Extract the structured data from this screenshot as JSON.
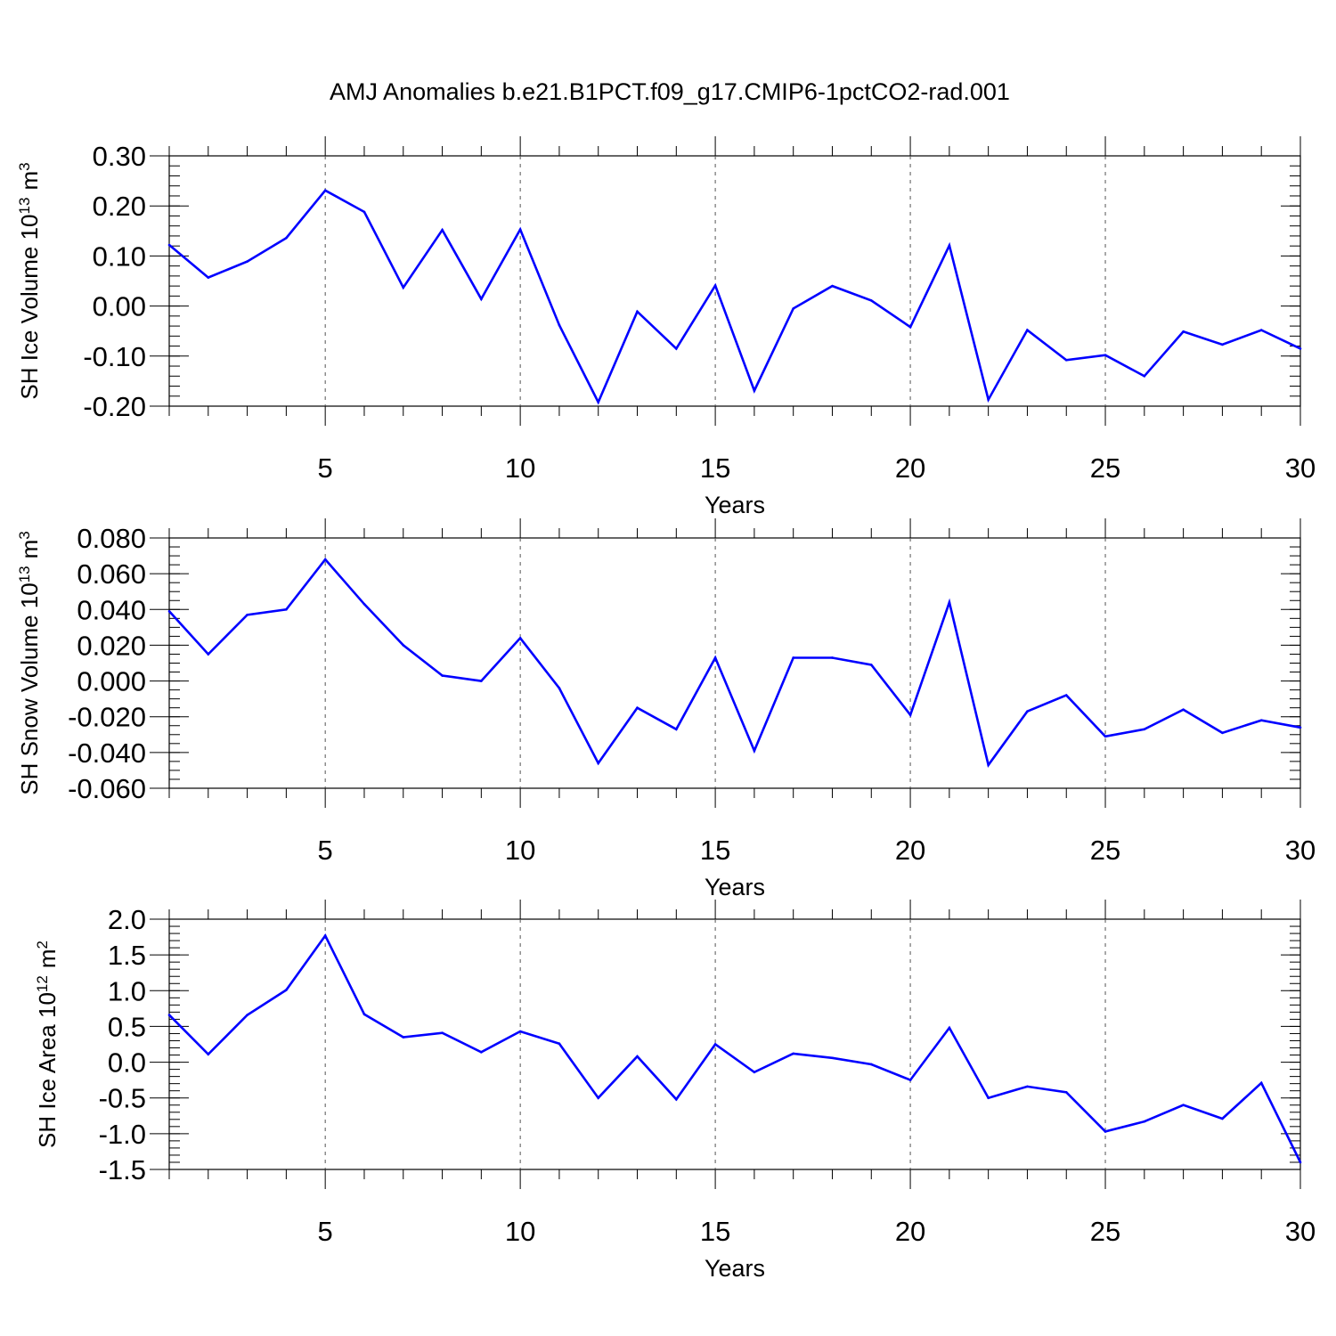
{
  "title": "AMJ Anomalies b.e21.B1PCT.f09_g17.CMIP6-1pctCO2-rad.001",
  "line_color": "#0000ff",
  "chart_data": [
    {
      "type": "line",
      "ylabel_main": "SH Ice Volume 10",
      "ylabel_sup": "13",
      "ylabel_unit": "m",
      "ylabel_unit_sup": "3",
      "xlabel": "Years",
      "ylim": [
        -0.2,
        0.3
      ],
      "xlim": [
        1,
        30
      ],
      "yticks": [
        "0.30",
        "0.20",
        "0.10",
        "0.00",
        "-0.10",
        "-0.20"
      ],
      "ytick_values": [
        0.3,
        0.2,
        0.1,
        0.0,
        -0.1,
        -0.2
      ],
      "yminor_step": 0.02,
      "xticks": [
        "5",
        "10",
        "15",
        "20",
        "25",
        "30"
      ],
      "xtick_values": [
        5,
        10,
        15,
        20,
        25,
        30
      ],
      "grid_x": "dashed-vertical",
      "x": [
        1,
        2,
        3,
        4,
        5,
        6,
        7,
        8,
        9,
        10,
        11,
        12,
        13,
        14,
        15,
        16,
        17,
        18,
        19,
        20,
        21,
        22,
        23,
        24,
        25,
        26,
        27,
        28,
        29,
        30
      ],
      "values": [
        0.122,
        0.057,
        0.089,
        0.136,
        0.231,
        0.188,
        0.037,
        0.152,
        0.014,
        0.153,
        -0.038,
        -0.192,
        -0.011,
        -0.085,
        0.041,
        -0.169,
        -0.005,
        0.04,
        0.011,
        -0.042,
        0.121,
        -0.187,
        -0.048,
        -0.108,
        -0.098,
        -0.14,
        -0.051,
        -0.077,
        -0.048,
        -0.085
      ]
    },
    {
      "type": "line",
      "ylabel_main": "SH Snow Volume 10",
      "ylabel_sup": "13",
      "ylabel_unit": "m",
      "ylabel_unit_sup": "3",
      "xlabel": "Years",
      "ylim": [
        -0.06,
        0.08
      ],
      "xlim": [
        1,
        30
      ],
      "yticks": [
        "0.080",
        "0.060",
        "0.040",
        "0.020",
        "0.000",
        "-0.020",
        "-0.040",
        "-0.060"
      ],
      "ytick_values": [
        0.08,
        0.06,
        0.04,
        0.02,
        0.0,
        -0.02,
        -0.04,
        -0.06
      ],
      "yminor_step": 0.005,
      "xticks": [
        "5",
        "10",
        "15",
        "20",
        "25",
        "30"
      ],
      "xtick_values": [
        5,
        10,
        15,
        20,
        25,
        30
      ],
      "grid_x": "dashed-vertical",
      "x": [
        1,
        2,
        3,
        4,
        5,
        6,
        7,
        8,
        9,
        10,
        11,
        12,
        13,
        14,
        15,
        16,
        17,
        18,
        19,
        20,
        21,
        22,
        23,
        24,
        25,
        26,
        27,
        28,
        29,
        30
      ],
      "values": [
        0.039,
        0.015,
        0.037,
        0.04,
        0.068,
        0.043,
        0.02,
        0.003,
        0.0,
        0.024,
        -0.004,
        -0.046,
        -0.015,
        -0.027,
        0.013,
        -0.039,
        0.013,
        0.013,
        0.009,
        -0.019,
        0.044,
        -0.047,
        -0.017,
        -0.008,
        -0.031,
        -0.027,
        -0.016,
        -0.029,
        -0.022,
        -0.026
      ]
    },
    {
      "type": "line",
      "ylabel_main": "SH Ice Area 10",
      "ylabel_sup": "12",
      "ylabel_unit": "m",
      "ylabel_unit_sup": "2",
      "xlabel": "Years",
      "ylim": [
        -1.5,
        2.0
      ],
      "xlim": [
        1,
        30
      ],
      "yticks": [
        "2.0",
        "1.5",
        "1.0",
        "0.5",
        "0.0",
        "-0.5",
        "-1.0",
        "-1.5"
      ],
      "ytick_values": [
        2.0,
        1.5,
        1.0,
        0.5,
        0.0,
        -0.5,
        -1.0,
        -1.5
      ],
      "yminor_step": 0.1,
      "xticks": [
        "5",
        "10",
        "15",
        "20",
        "25",
        "30"
      ],
      "xtick_values": [
        5,
        10,
        15,
        20,
        25,
        30
      ],
      "grid_x": "dashed-vertical",
      "x": [
        1,
        2,
        3,
        4,
        5,
        6,
        7,
        8,
        9,
        10,
        11,
        12,
        13,
        14,
        15,
        16,
        17,
        18,
        19,
        20,
        21,
        22,
        23,
        24,
        25,
        26,
        27,
        28,
        29,
        30
      ],
      "values": [
        0.66,
        0.11,
        0.66,
        1.01,
        1.77,
        0.67,
        0.35,
        0.41,
        0.14,
        0.43,
        0.26,
        -0.5,
        0.08,
        -0.52,
        0.25,
        -0.14,
        0.12,
        0.06,
        -0.03,
        -0.25,
        0.48,
        -0.5,
        -0.34,
        -0.42,
        -0.97,
        -0.83,
        -0.6,
        -0.79,
        -0.29,
        -1.4
      ]
    }
  ]
}
